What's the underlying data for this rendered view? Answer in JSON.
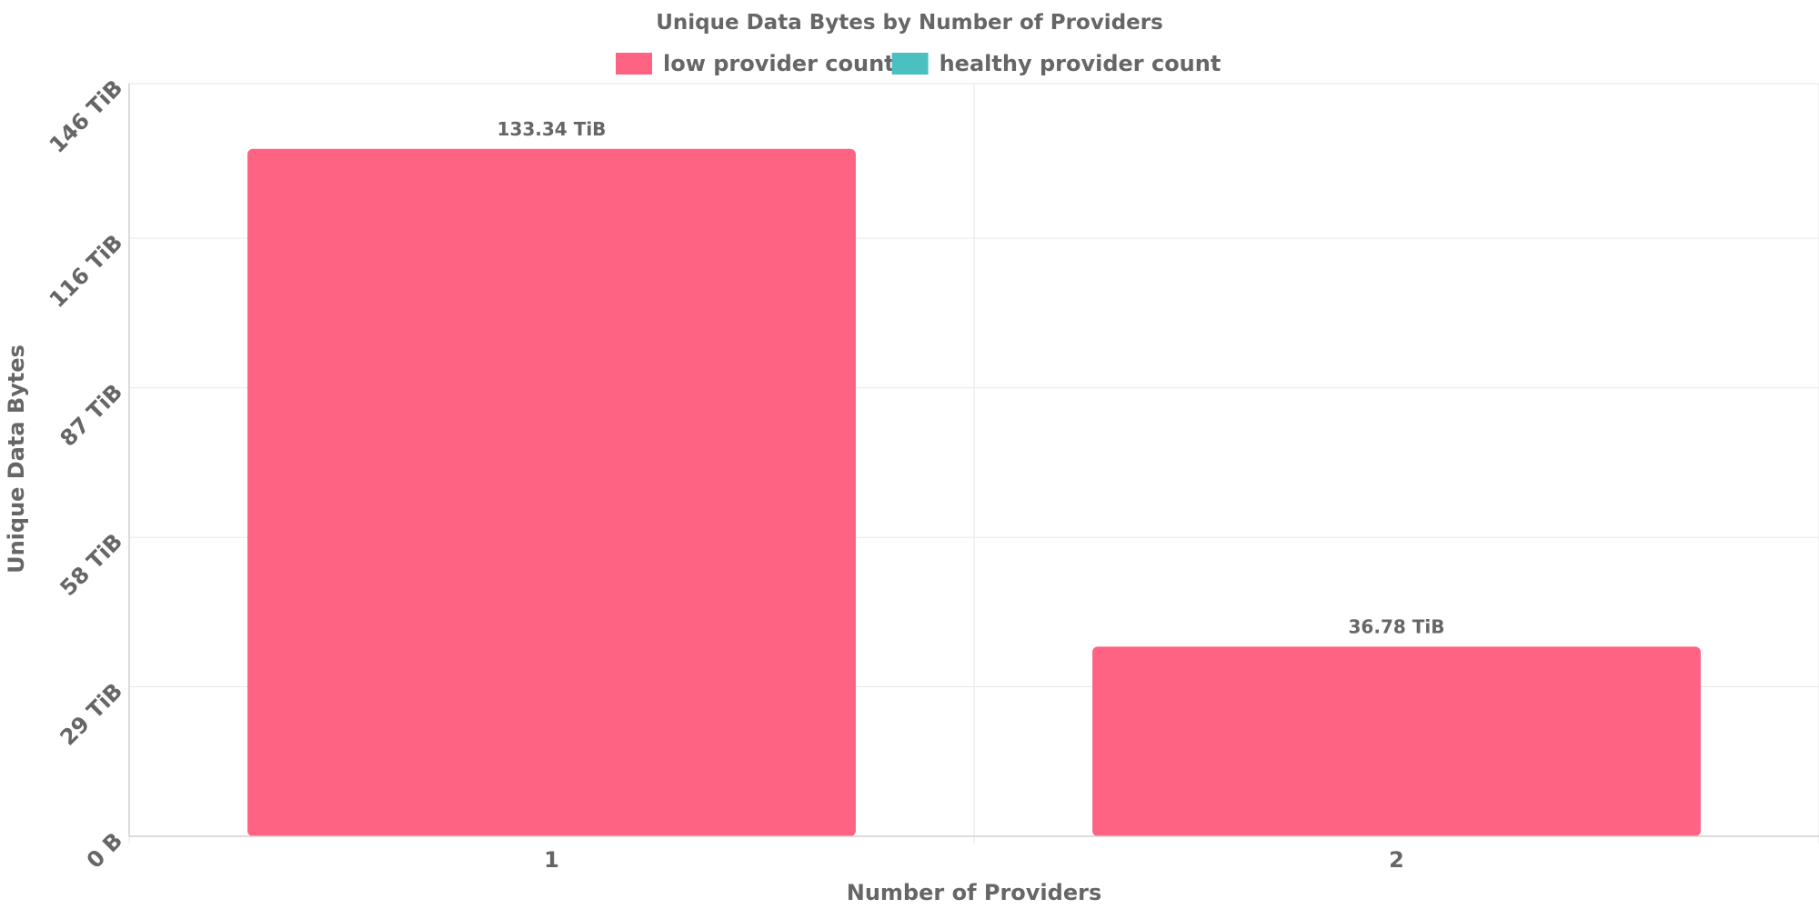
{
  "chart_data": {
    "type": "bar",
    "title": "Unique Data Bytes by Number of Providers",
    "xlabel": "Number of Providers",
    "ylabel": "Unique Data Bytes",
    "categories": [
      "1",
      "2"
    ],
    "series": [
      {
        "name": "low provider count",
        "color": "#FF6384",
        "values": [
          133.34,
          36.78
        ]
      },
      {
        "name": "healthy provider count",
        "color": "#4BC0C0",
        "values": [
          0,
          0
        ]
      }
    ],
    "value_unit": "TiB",
    "data_labels": [
      "133.34 TiB",
      "36.78 TiB"
    ],
    "yticks": [
      0,
      29,
      58,
      87,
      116,
      146
    ],
    "ytick_labels": [
      "0 B",
      "29 TiB",
      "58 TiB",
      "87 TiB",
      "116 TiB",
      "146 TiB"
    ],
    "ylim": [
      0,
      146
    ],
    "grid": true,
    "legend_position": "top"
  }
}
